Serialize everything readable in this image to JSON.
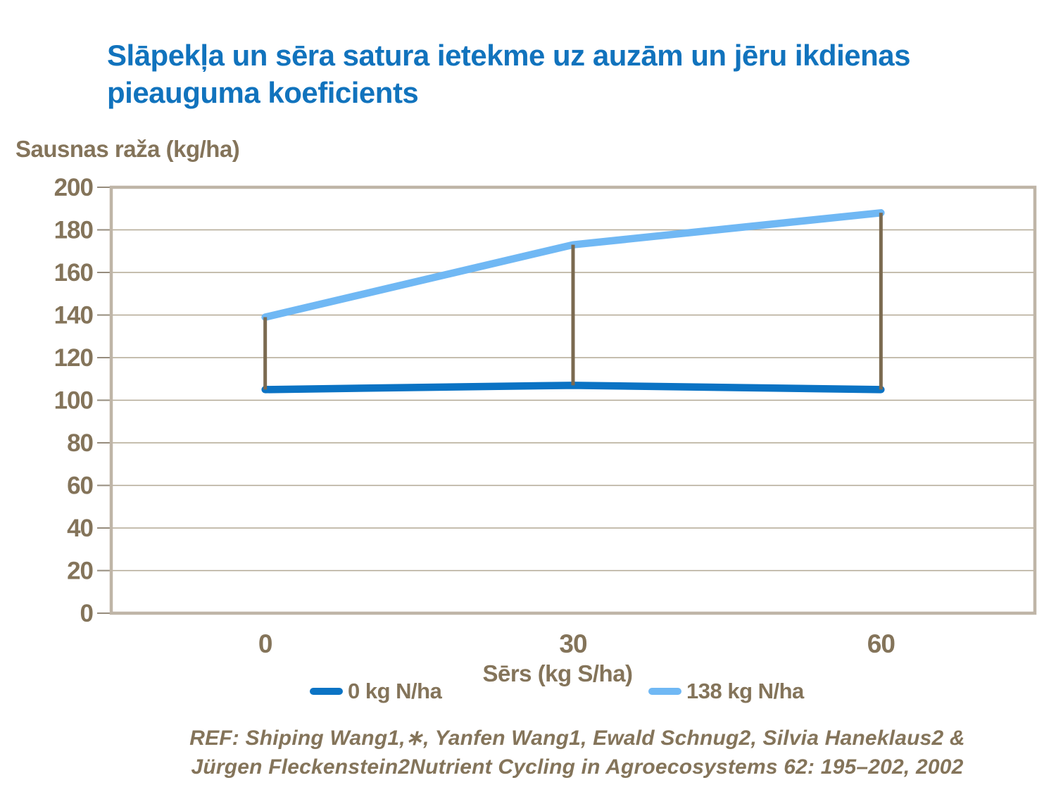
{
  "chart_data": {
    "type": "line",
    "title": "Slāpekļa un sēra satura ietekme uz auzām un jēru ikdienas pieauguma koeficients",
    "xlabel": "Sērs (kg S/ha)",
    "ylabel": "Sausnas raža (kg/ha)",
    "categories": [
      "0",
      "30",
      "60"
    ],
    "series": [
      {
        "name": "0 kg N/ha",
        "color": "#0b73c4",
        "values": [
          105,
          107,
          105
        ]
      },
      {
        "name": "138 kg N/ha",
        "color": "#70b8f4",
        "values": [
          139,
          173,
          188
        ]
      }
    ],
    "ylim": [
      0,
      200
    ],
    "ytick_step": 20,
    "grid": true,
    "legend_position": "bottom",
    "high_low_connectors": true,
    "connector_color": "#7b6a50"
  },
  "reference": {
    "lines": [
      "REF: Shiping Wang1,∗, Yanfen Wang1, Ewald Schnug2, Silvia Haneklaus2 &",
      "Jürgen Fleckenstein2Nutrient Cycling in Agroecosystems 62: 195–202, 2002"
    ]
  },
  "colors": {
    "title": "#1173bd",
    "text_brown": "#84745a",
    "gridline": "#b2a894",
    "frame": "#bfb5a7",
    "tick": "#968c7d"
  }
}
